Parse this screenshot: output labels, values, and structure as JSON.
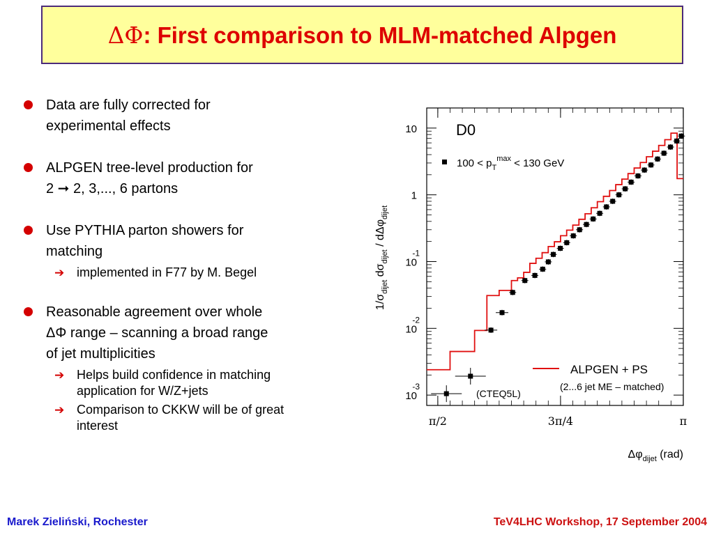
{
  "title": {
    "prefix": "ΔΦ",
    "text": ": First comparison to MLM-matched Alpgen"
  },
  "bullets": [
    {
      "lines": [
        "Data are fully corrected for",
        "experimental effects"
      ],
      "subs": []
    },
    {
      "lines": [
        "ALPGEN tree-level production for",
        "2 ➞ 2, 3,..., 6 partons"
      ],
      "subs": []
    },
    {
      "lines": [
        "Use PYTHIA parton showers for",
        "matching"
      ],
      "subs": [
        [
          "implemented in F77 by M. Begel"
        ]
      ]
    },
    {
      "lines": [
        "Reasonable agreement over whole",
        "ΔΦ range – scanning a broad range",
        "of jet multiplicities"
      ],
      "subs": [
        [
          "Helps build confidence in matching",
          "application for W/Z+jets"
        ],
        [
          "Comparison to CKKW will be of great",
          "interest"
        ]
      ]
    }
  ],
  "footer": {
    "left": "Marek Zieliński, Rochester",
    "right": "TeV4LHC Workshop,  17 September 2004"
  },
  "colors": {
    "title_bg": "#ffff9c",
    "title_text": "#dd0000",
    "title_border": "#4b2a7a",
    "bullet": "#d40000",
    "footer_left": "#1a1acc",
    "footer_right": "#cc1111",
    "histogram": "#e01010"
  },
  "chart_data": {
    "type": "scatter",
    "experiment": "D0",
    "selection": {
      "lead": "100 < p",
      "sub": "T",
      "sup": "max",
      "tail": " < 130 GeV"
    },
    "ylabel": {
      "a": "1/σ",
      "a_sub": "dijet",
      "b": " dσ",
      "b_sub": "dijet",
      "c": " / dΔφ",
      "c_sub": "dijet"
    },
    "xlabel": {
      "a": "Δφ",
      "a_sub": "dijet",
      "b": "(rad)"
    },
    "x_ticks": [
      {
        "pos": 1.5708,
        "label": "π/2"
      },
      {
        "pos": 2.3562,
        "label": "3π/4"
      },
      {
        "pos": 3.1416,
        "label": "π"
      }
    ],
    "y_ticks": [
      {
        "pos": 10,
        "base": "10",
        "exp": ""
      },
      {
        "pos": 1,
        "base": "1",
        "exp": ""
      },
      {
        "pos": 0.1,
        "base": "10",
        "exp": "-1"
      },
      {
        "pos": 0.01,
        "base": "10",
        "exp": "-2"
      },
      {
        "pos": 0.001,
        "base": "10",
        "exp": "-3"
      }
    ],
    "xlim": [
      1.5,
      3.142
    ],
    "ylim": [
      0.0007,
      20
    ],
    "log_y": true,
    "data_label": "100 < pTmax < 130 GeV",
    "theory_label": "ALPGEN + PS",
    "theory_sublabel": "(2...6 jet ME – matched)",
    "pdf_label": "(CTEQ5L)",
    "data": {
      "x": [
        1.626,
        1.78,
        1.911,
        1.982,
        2.05,
        2.128,
        2.192,
        2.242,
        2.278,
        2.31,
        2.355,
        2.396,
        2.438,
        2.478,
        2.522,
        2.565,
        2.607,
        2.65,
        2.69,
        2.73,
        2.77,
        2.808,
        2.852,
        2.893,
        2.935,
        2.977,
        3.018,
        3.06,
        3.1,
        3.13
      ],
      "y": [
        0.00105,
        0.00192,
        0.0094,
        0.0172,
        0.0345,
        0.052,
        0.062,
        0.077,
        0.099,
        0.128,
        0.158,
        0.192,
        0.243,
        0.3,
        0.36,
        0.435,
        0.528,
        0.66,
        0.8,
        1.0,
        1.23,
        1.55,
        1.92,
        2.35,
        2.8,
        3.44,
        4.2,
        5.2,
        6.4,
        7.6
      ]
    },
    "theory": {
      "edges": [
        1.5708,
        1.6493,
        1.8064,
        1.885,
        1.9635,
        2.0421,
        2.0813,
        2.1206,
        2.1598,
        2.1991,
        2.2384,
        2.2776,
        2.3169,
        2.3562,
        2.3955,
        2.4347,
        2.474,
        2.5133,
        2.5525,
        2.5918,
        2.631,
        2.6703,
        2.7096,
        2.7488,
        2.7881,
        2.8274,
        2.8666,
        2.9059,
        2.9452,
        2.9844,
        3.0237,
        3.0629,
        3.1022,
        3.1416
      ],
      "values": [
        0.0024,
        0.0045,
        0.0093,
        0.031,
        0.037,
        0.052,
        0.057,
        0.069,
        0.094,
        0.112,
        0.136,
        0.168,
        0.198,
        0.244,
        0.296,
        0.352,
        0.43,
        0.52,
        0.64,
        0.79,
        0.95,
        1.16,
        1.42,
        1.72,
        2.08,
        2.52,
        3.05,
        3.72,
        4.5,
        5.5,
        6.7,
        8.4,
        1.75
      ]
    }
  }
}
